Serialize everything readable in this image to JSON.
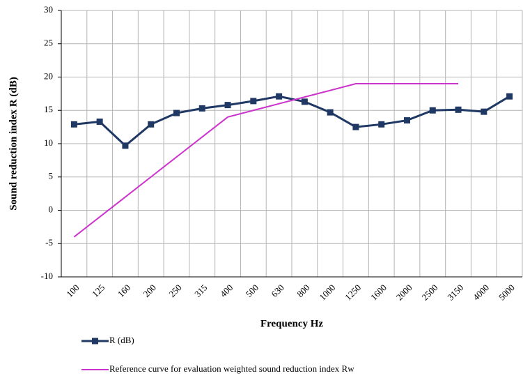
{
  "chart_data": {
    "type": "line",
    "x_label": "Frequency Hz",
    "y_label": "Sound reduction index R (dB)",
    "categories": [
      "100",
      "125",
      "160",
      "200",
      "250",
      "315",
      "400",
      "500",
      "630",
      "800",
      "1000",
      "1250",
      "1600",
      "2000",
      "2500",
      "3150",
      "4000",
      "5000"
    ],
    "series": [
      {
        "name": "R (dB)",
        "color": "#1f3864",
        "marker": "square",
        "values": [
          12.9,
          13.3,
          9.7,
          12.9,
          14.6,
          15.3,
          15.8,
          16.4,
          17.1,
          16.3,
          14.7,
          12.5,
          12.9,
          13.5,
          15.0,
          15.1,
          14.8,
          17.1
        ]
      },
      {
        "name": "Reference curve for evaluation weighted sound reduction index Rw",
        "color": "#cc33cc",
        "marker": "none",
        "values": [
          -4,
          -1,
          2,
          5,
          8,
          11,
          14,
          15,
          16,
          17,
          18,
          19,
          19,
          19,
          19,
          19,
          null,
          null
        ]
      }
    ],
    "ylim": [
      -10,
      30
    ],
    "yticks": [
      -10,
      -5,
      0,
      5,
      10,
      15,
      20,
      25,
      30
    ],
    "grid": true
  }
}
